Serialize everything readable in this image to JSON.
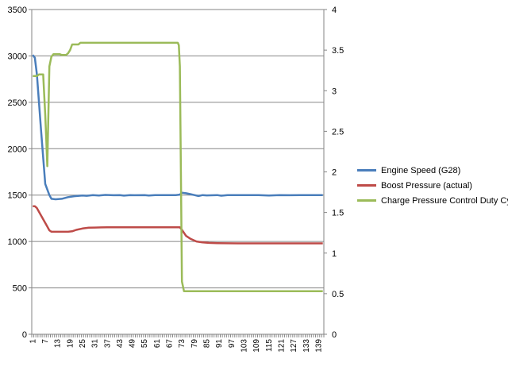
{
  "chart_data": {
    "type": "line",
    "title": "",
    "xlabel": "",
    "ylabel": "",
    "y2label": "",
    "x_tick_labels": [
      "1",
      "7",
      "13",
      "19",
      "25",
      "31",
      "37",
      "43",
      "49",
      "55",
      "61",
      "67",
      "73",
      "79",
      "85",
      "91",
      "97",
      "103",
      "109",
      "115",
      "121",
      "127",
      "133",
      "139"
    ],
    "x_range": [
      1,
      141
    ],
    "ylim": [
      0,
      3500
    ],
    "y_ticks": [
      0,
      500,
      1000,
      1500,
      2000,
      2500,
      3000,
      3500
    ],
    "y2lim": [
      0,
      4
    ],
    "y2_ticks": [
      0,
      0.5,
      1,
      1.5,
      2,
      2.5,
      3,
      3.5,
      4
    ],
    "grid": true,
    "legend_position": "right",
    "series": [
      {
        "name": "Engine Speed (G28)",
        "axis": "left",
        "color": "#4a7ebb",
        "x": [
          1,
          2,
          3,
          5,
          7,
          8,
          9,
          10,
          12,
          15,
          18,
          21,
          25,
          27,
          30,
          33,
          36,
          40,
          43,
          45,
          48,
          50,
          55,
          57,
          60,
          65,
          70,
          72,
          73,
          75,
          77,
          79,
          81,
          83,
          85,
          90,
          92,
          95,
          100,
          105,
          110,
          115,
          120,
          125,
          130,
          135,
          141
        ],
        "y": [
          3010,
          2980,
          2800,
          2200,
          1620,
          1560,
          1500,
          1460,
          1455,
          1460,
          1478,
          1488,
          1495,
          1492,
          1500,
          1496,
          1502,
          1498,
          1500,
          1494,
          1500,
          1498,
          1500,
          1496,
          1500,
          1500,
          1500,
          1505,
          1525,
          1520,
          1510,
          1500,
          1490,
          1500,
          1497,
          1500,
          1493,
          1500,
          1500,
          1500,
          1500,
          1495,
          1500,
          1498,
          1500,
          1500,
          1500
        ]
      },
      {
        "name": "Boost Pressure (actual)",
        "axis": "left",
        "color": "#be4b48",
        "x": [
          1,
          2,
          3,
          4,
          5,
          7,
          8,
          9,
          10,
          12,
          15,
          18,
          20,
          22,
          25,
          28,
          31,
          34,
          37,
          40,
          50,
          60,
          70,
          72,
          73,
          75,
          77,
          80,
          83,
          86,
          90,
          100,
          110,
          120,
          130,
          141
        ],
        "y": [
          1380,
          1380,
          1360,
          1320,
          1280,
          1200,
          1160,
          1120,
          1105,
          1105,
          1105,
          1105,
          1110,
          1125,
          1140,
          1148,
          1150,
          1152,
          1153,
          1153,
          1153,
          1153,
          1153,
          1153,
          1125,
          1060,
          1030,
          1000,
          990,
          985,
          982,
          980,
          980,
          980,
          980,
          980
        ]
      },
      {
        "name": "Charge Pressure Control Duty Cycle",
        "axis": "right",
        "color": "#9bbb59",
        "x": [
          1,
          3,
          4,
          5,
          6,
          7,
          7.5,
          8,
          9,
          10,
          11,
          12,
          13,
          14,
          15,
          17,
          18,
          19,
          20,
          21,
          22,
          23,
          24,
          25,
          26,
          30,
          40,
          50,
          60,
          70,
          71,
          71.5,
          72,
          72.5,
          73,
          74,
          80,
          90,
          100,
          110,
          120,
          130,
          141
        ],
        "y": [
          3.18,
          3.18,
          3.2,
          3.2,
          3.2,
          2.7,
          2.4,
          2.07,
          3.3,
          3.42,
          3.45,
          3.45,
          3.45,
          3.45,
          3.44,
          3.44,
          3.46,
          3.5,
          3.57,
          3.57,
          3.57,
          3.57,
          3.59,
          3.59,
          3.59,
          3.59,
          3.59,
          3.59,
          3.59,
          3.59,
          3.59,
          3.56,
          3.3,
          2.0,
          0.65,
          0.53,
          0.53,
          0.53,
          0.53,
          0.53,
          0.53,
          0.53,
          0.53
        ]
      }
    ]
  }
}
